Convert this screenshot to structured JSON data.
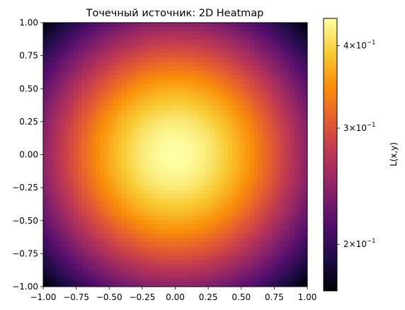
{
  "chart_data": {
    "type": "heatmap",
    "title": "Точечный источник: 2D Heatmap",
    "xlabel": "",
    "ylabel": "",
    "xlim": [
      -1.0,
      1.0
    ],
    "ylim": [
      -1.0,
      1.0
    ],
    "x_ticks": [
      "−1.00",
      "−0.75",
      "−0.50",
      "−0.25",
      "0.00",
      "0.25",
      "0.50",
      "0.75",
      "1.00"
    ],
    "y_ticks": [
      "1.00",
      "0.75",
      "0.50",
      "0.25",
      "0.00",
      "−0.25",
      "−0.50",
      "−0.75",
      "−1.00"
    ],
    "x_tick_values": [
      -1.0,
      -0.75,
      -0.5,
      -0.25,
      0.0,
      0.25,
      0.5,
      0.75,
      1.0
    ],
    "y_tick_values": [
      1.0,
      0.75,
      0.5,
      0.25,
      0.0,
      -0.25,
      -0.5,
      -0.75,
      -1.0
    ],
    "colormap": "inferno",
    "grid": false,
    "field": {
      "description_of_values": "L(x,y) peaks at center (0,0) and decreases radially",
      "center_value": 0.44,
      "corner_value": 0.17,
      "center": [
        0.0,
        0.0
      ]
    },
    "colorbar": {
      "label": "L(x,y)",
      "scale": "log",
      "vmin": 0.17,
      "vmax": 0.44,
      "tick_values": [
        0.4,
        0.3,
        0.2
      ],
      "tick_base": [
        "4",
        "3",
        "2"
      ],
      "tick_exp": [
        "−1",
        "−1",
        "−1"
      ]
    }
  }
}
